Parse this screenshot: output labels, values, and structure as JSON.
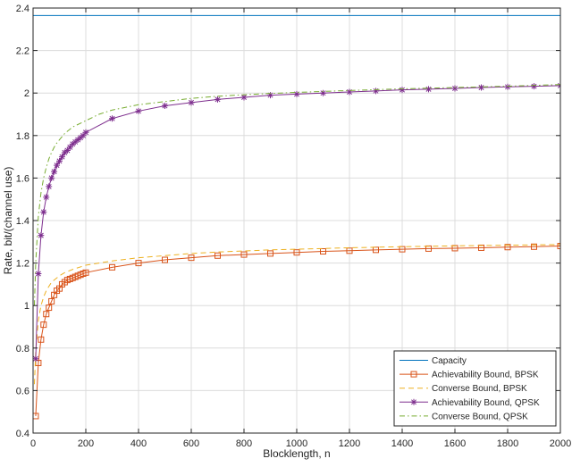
{
  "chart_data": {
    "type": "line",
    "title": "",
    "xlabel": "Blocklength, n",
    "ylabel": "Rate, bit/(channel use)",
    "xlim": [
      0,
      2000
    ],
    "ylim": [
      0.4,
      2.4
    ],
    "xticks": [
      0,
      200,
      400,
      600,
      800,
      1000,
      1200,
      1400,
      1600,
      1800,
      2000
    ],
    "yticks": [
      0.4,
      0.6,
      0.8,
      1,
      1.2,
      1.4,
      1.6,
      1.8,
      2,
      2.2,
      2.4
    ],
    "xtick_labels": [
      "0",
      "200",
      "400",
      "600",
      "800",
      "1000",
      "1200",
      "1400",
      "1600",
      "1800",
      "2000"
    ],
    "ytick_labels": [
      "0.4",
      "0.6",
      "0.8",
      "1",
      "1.2",
      "1.4",
      "1.6",
      "1.8",
      "2",
      "2.2",
      "2.4"
    ],
    "grid": true,
    "legend_position": "bottom-right",
    "series": [
      {
        "name": "Capacity",
        "color": "#0072BD",
        "line_style": "solid",
        "marker": "none",
        "x": [
          0,
          2000
        ],
        "y": [
          2.365,
          2.365
        ]
      },
      {
        "name": "Achievability Bound, BPSK",
        "color": "#D95319",
        "line_style": "solid",
        "marker": "square",
        "x": [
          10,
          20,
          30,
          40,
          50,
          60,
          70,
          80,
          90,
          100,
          110,
          120,
          130,
          140,
          150,
          160,
          170,
          180,
          190,
          200,
          300,
          400,
          500,
          600,
          700,
          800,
          900,
          1000,
          1100,
          1200,
          1300,
          1400,
          1500,
          1600,
          1700,
          1800,
          1900,
          2000
        ],
        "y": [
          0.48,
          0.73,
          0.84,
          0.91,
          0.96,
          0.99,
          1.02,
          1.05,
          1.07,
          1.08,
          1.1,
          1.11,
          1.12,
          1.125,
          1.13,
          1.135,
          1.14,
          1.145,
          1.15,
          1.155,
          1.18,
          1.2,
          1.215,
          1.225,
          1.235,
          1.24,
          1.245,
          1.25,
          1.255,
          1.258,
          1.262,
          1.265,
          1.268,
          1.27,
          1.272,
          1.275,
          1.277,
          1.28
        ]
      },
      {
        "name": "Converse Bound, BPSK",
        "color": "#EDB120",
        "line_style": "dashed",
        "marker": "none",
        "x": [
          5,
          10,
          20,
          30,
          40,
          50,
          60,
          70,
          80,
          90,
          100,
          120,
          150,
          200,
          250,
          300,
          400,
          500,
          600,
          700,
          800,
          900,
          1000,
          1200,
          1400,
          1600,
          1800,
          2000
        ],
        "y": [
          0.63,
          0.78,
          0.93,
          1.0,
          1.04,
          1.07,
          1.09,
          1.11,
          1.12,
          1.13,
          1.14,
          1.155,
          1.17,
          1.19,
          1.2,
          1.21,
          1.225,
          1.235,
          1.245,
          1.252,
          1.257,
          1.262,
          1.265,
          1.272,
          1.277,
          1.281,
          1.284,
          1.287
        ]
      },
      {
        "name": "Achievability Bound, QPSK",
        "color": "#7E2F8E",
        "line_style": "solid",
        "marker": "asterisk",
        "x": [
          10,
          20,
          30,
          40,
          50,
          60,
          70,
          80,
          90,
          100,
          110,
          120,
          130,
          140,
          150,
          160,
          170,
          180,
          190,
          200,
          300,
          400,
          500,
          600,
          700,
          800,
          900,
          1000,
          1100,
          1200,
          1300,
          1400,
          1500,
          1600,
          1700,
          1800,
          1900,
          2000
        ],
        "y": [
          0.75,
          1.15,
          1.33,
          1.44,
          1.51,
          1.56,
          1.6,
          1.63,
          1.66,
          1.68,
          1.7,
          1.72,
          1.73,
          1.745,
          1.76,
          1.77,
          1.78,
          1.79,
          1.8,
          1.815,
          1.88,
          1.915,
          1.94,
          1.955,
          1.97,
          1.98,
          1.99,
          1.995,
          2.0,
          2.005,
          2.01,
          2.015,
          2.018,
          2.022,
          2.026,
          2.029,
          2.032,
          2.035
        ]
      },
      {
        "name": "Converse Bound, QPSK",
        "color": "#77AC30",
        "line_style": "dashdot",
        "marker": "none",
        "x": [
          5,
          10,
          20,
          30,
          40,
          50,
          60,
          70,
          80,
          90,
          100,
          120,
          150,
          200,
          250,
          300,
          400,
          500,
          600,
          700,
          800,
          900,
          1000,
          1200,
          1400,
          1600,
          1800,
          2000
        ],
        "y": [
          1.0,
          1.2,
          1.42,
          1.53,
          1.6,
          1.65,
          1.69,
          1.72,
          1.745,
          1.765,
          1.78,
          1.81,
          1.84,
          1.87,
          1.9,
          1.92,
          1.945,
          1.96,
          1.975,
          1.985,
          1.992,
          1.998,
          2.003,
          2.012,
          2.02,
          2.026,
          2.032,
          2.04
        ]
      }
    ]
  }
}
